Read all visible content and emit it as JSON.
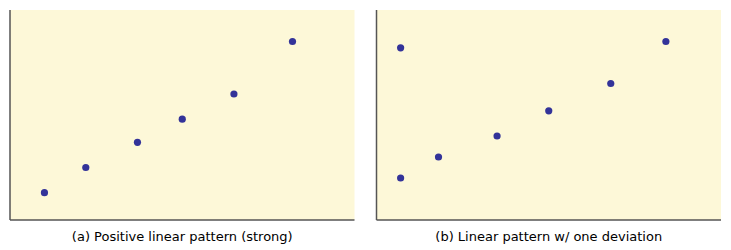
{
  "chart_data": [
    {
      "type": "scatter",
      "title": "(a) Positive linear pattern (strong)",
      "x": [
        0.1,
        0.22,
        0.37,
        0.5,
        0.65,
        0.82
      ],
      "y": [
        0.13,
        0.25,
        0.37,
        0.48,
        0.6,
        0.85
      ],
      "xlim": [
        0,
        1
      ],
      "ylim": [
        0,
        1
      ],
      "tick_labels": false,
      "color": "#333399"
    },
    {
      "type": "scatter",
      "title": "(b) Linear pattern w/ one deviation",
      "x": [
        0.07,
        0.18,
        0.35,
        0.5,
        0.68,
        0.84,
        0.07
      ],
      "y": [
        0.2,
        0.3,
        0.4,
        0.52,
        0.65,
        0.85,
        0.82
      ],
      "xlim": [
        0,
        1
      ],
      "ylim": [
        0,
        1
      ],
      "tick_labels": false,
      "color": "#333399"
    }
  ]
}
